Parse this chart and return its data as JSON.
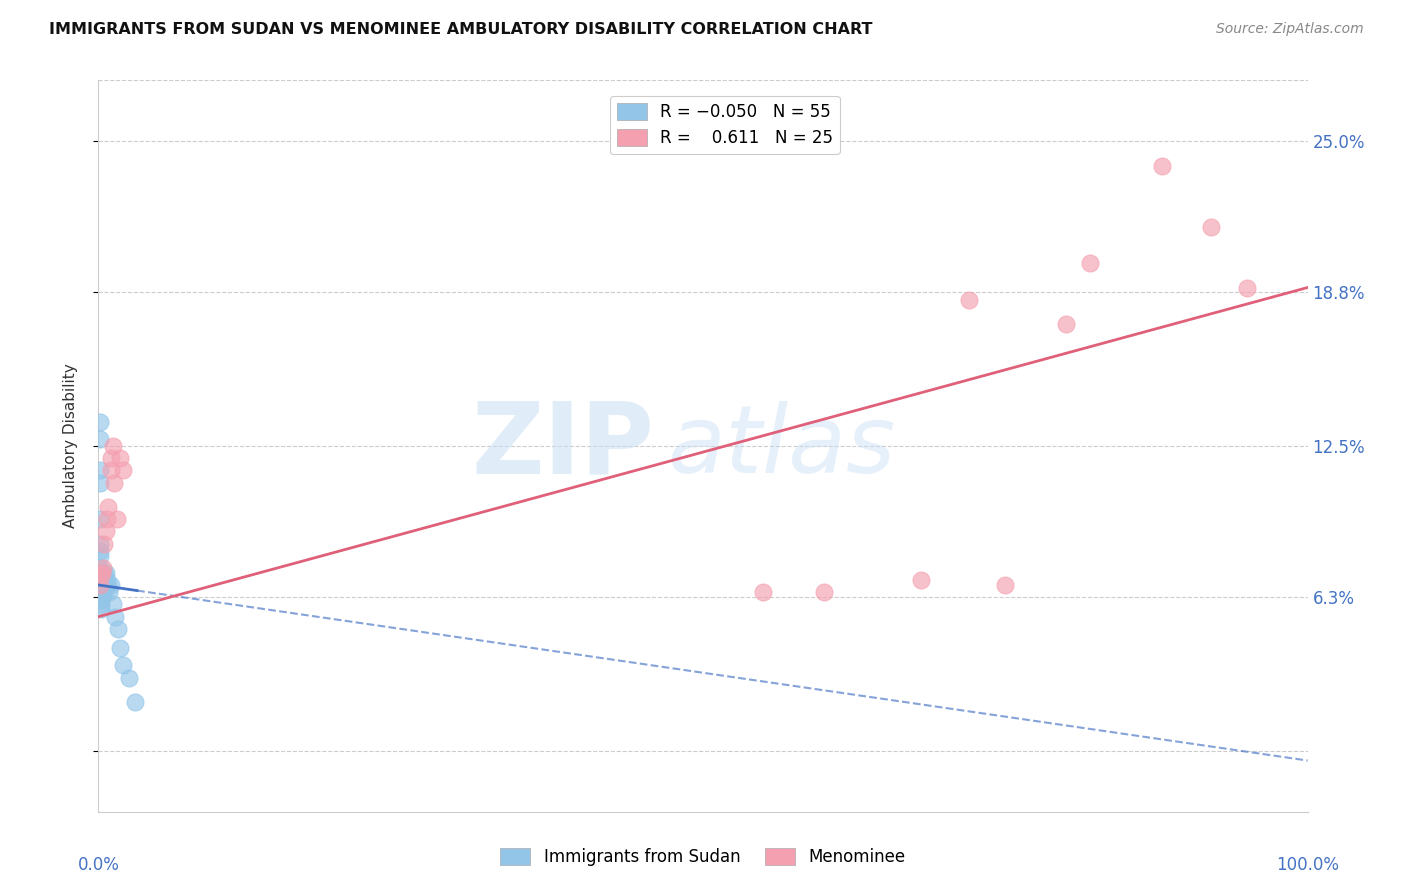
{
  "title": "IMMIGRANTS FROM SUDAN VS MENOMINEE AMBULATORY DISABILITY CORRELATION CHART",
  "source": "Source: ZipAtlas.com",
  "ylabel": "Ambulatory Disability",
  "xlim": [
    0.0,
    1.0
  ],
  "ylim": [
    -0.025,
    0.275
  ],
  "yticks": [
    0.0,
    0.063,
    0.125,
    0.188,
    0.25
  ],
  "ytick_labels": [
    "",
    "6.3%",
    "12.5%",
    "18.8%",
    "25.0%"
  ],
  "blue_color": "#92c5e8",
  "pink_color": "#f4a0b0",
  "blue_line_color": "#4472c4",
  "pink_line_color": "#e0607a",
  "watermark_zip": "ZIP",
  "watermark_atlas": "atlas",
  "blue_scatter_x": [
    0.001,
    0.001,
    0.001,
    0.001,
    0.001,
    0.001,
    0.001,
    0.001,
    0.001,
    0.001,
    0.001,
    0.001,
    0.001,
    0.001,
    0.001,
    0.001,
    0.001,
    0.001,
    0.001,
    0.001,
    0.002,
    0.002,
    0.002,
    0.002,
    0.002,
    0.002,
    0.002,
    0.002,
    0.002,
    0.002,
    0.003,
    0.003,
    0.003,
    0.003,
    0.003,
    0.004,
    0.004,
    0.004,
    0.004,
    0.005,
    0.005,
    0.005,
    0.006,
    0.006,
    0.007,
    0.008,
    0.009,
    0.01,
    0.012,
    0.014,
    0.016,
    0.018,
    0.02,
    0.025,
    0.03
  ],
  "blue_scatter_y": [
    0.135,
    0.128,
    0.115,
    0.11,
    0.095,
    0.085,
    0.082,
    0.08,
    0.075,
    0.073,
    0.072,
    0.071,
    0.07,
    0.069,
    0.068,
    0.067,
    0.066,
    0.065,
    0.064,
    0.063,
    0.073,
    0.071,
    0.07,
    0.068,
    0.065,
    0.064,
    0.063,
    0.062,
    0.06,
    0.058,
    0.073,
    0.07,
    0.068,
    0.065,
    0.063,
    0.072,
    0.07,
    0.068,
    0.065,
    0.073,
    0.07,
    0.065,
    0.073,
    0.068,
    0.07,
    0.068,
    0.065,
    0.068,
    0.06,
    0.055,
    0.05,
    0.042,
    0.035,
    0.03,
    0.02
  ],
  "pink_scatter_x": [
    0.001,
    0.002,
    0.003,
    0.004,
    0.005,
    0.006,
    0.007,
    0.008,
    0.01,
    0.01,
    0.012,
    0.013,
    0.015,
    0.018,
    0.02,
    0.55,
    0.6,
    0.68,
    0.75,
    0.82,
    0.88,
    0.92,
    0.95,
    0.72,
    0.8
  ],
  "pink_scatter_y": [
    0.068,
    0.072,
    0.073,
    0.075,
    0.085,
    0.09,
    0.095,
    0.1,
    0.115,
    0.12,
    0.125,
    0.11,
    0.095,
    0.12,
    0.115,
    0.065,
    0.065,
    0.07,
    0.068,
    0.2,
    0.24,
    0.215,
    0.19,
    0.185,
    0.175
  ],
  "blue_line_x0": 0.0,
  "blue_line_y0": 0.068,
  "blue_line_slope": -0.072,
  "pink_line_x0": 0.0,
  "pink_line_y0": 0.055,
  "pink_line_slope": 0.135
}
